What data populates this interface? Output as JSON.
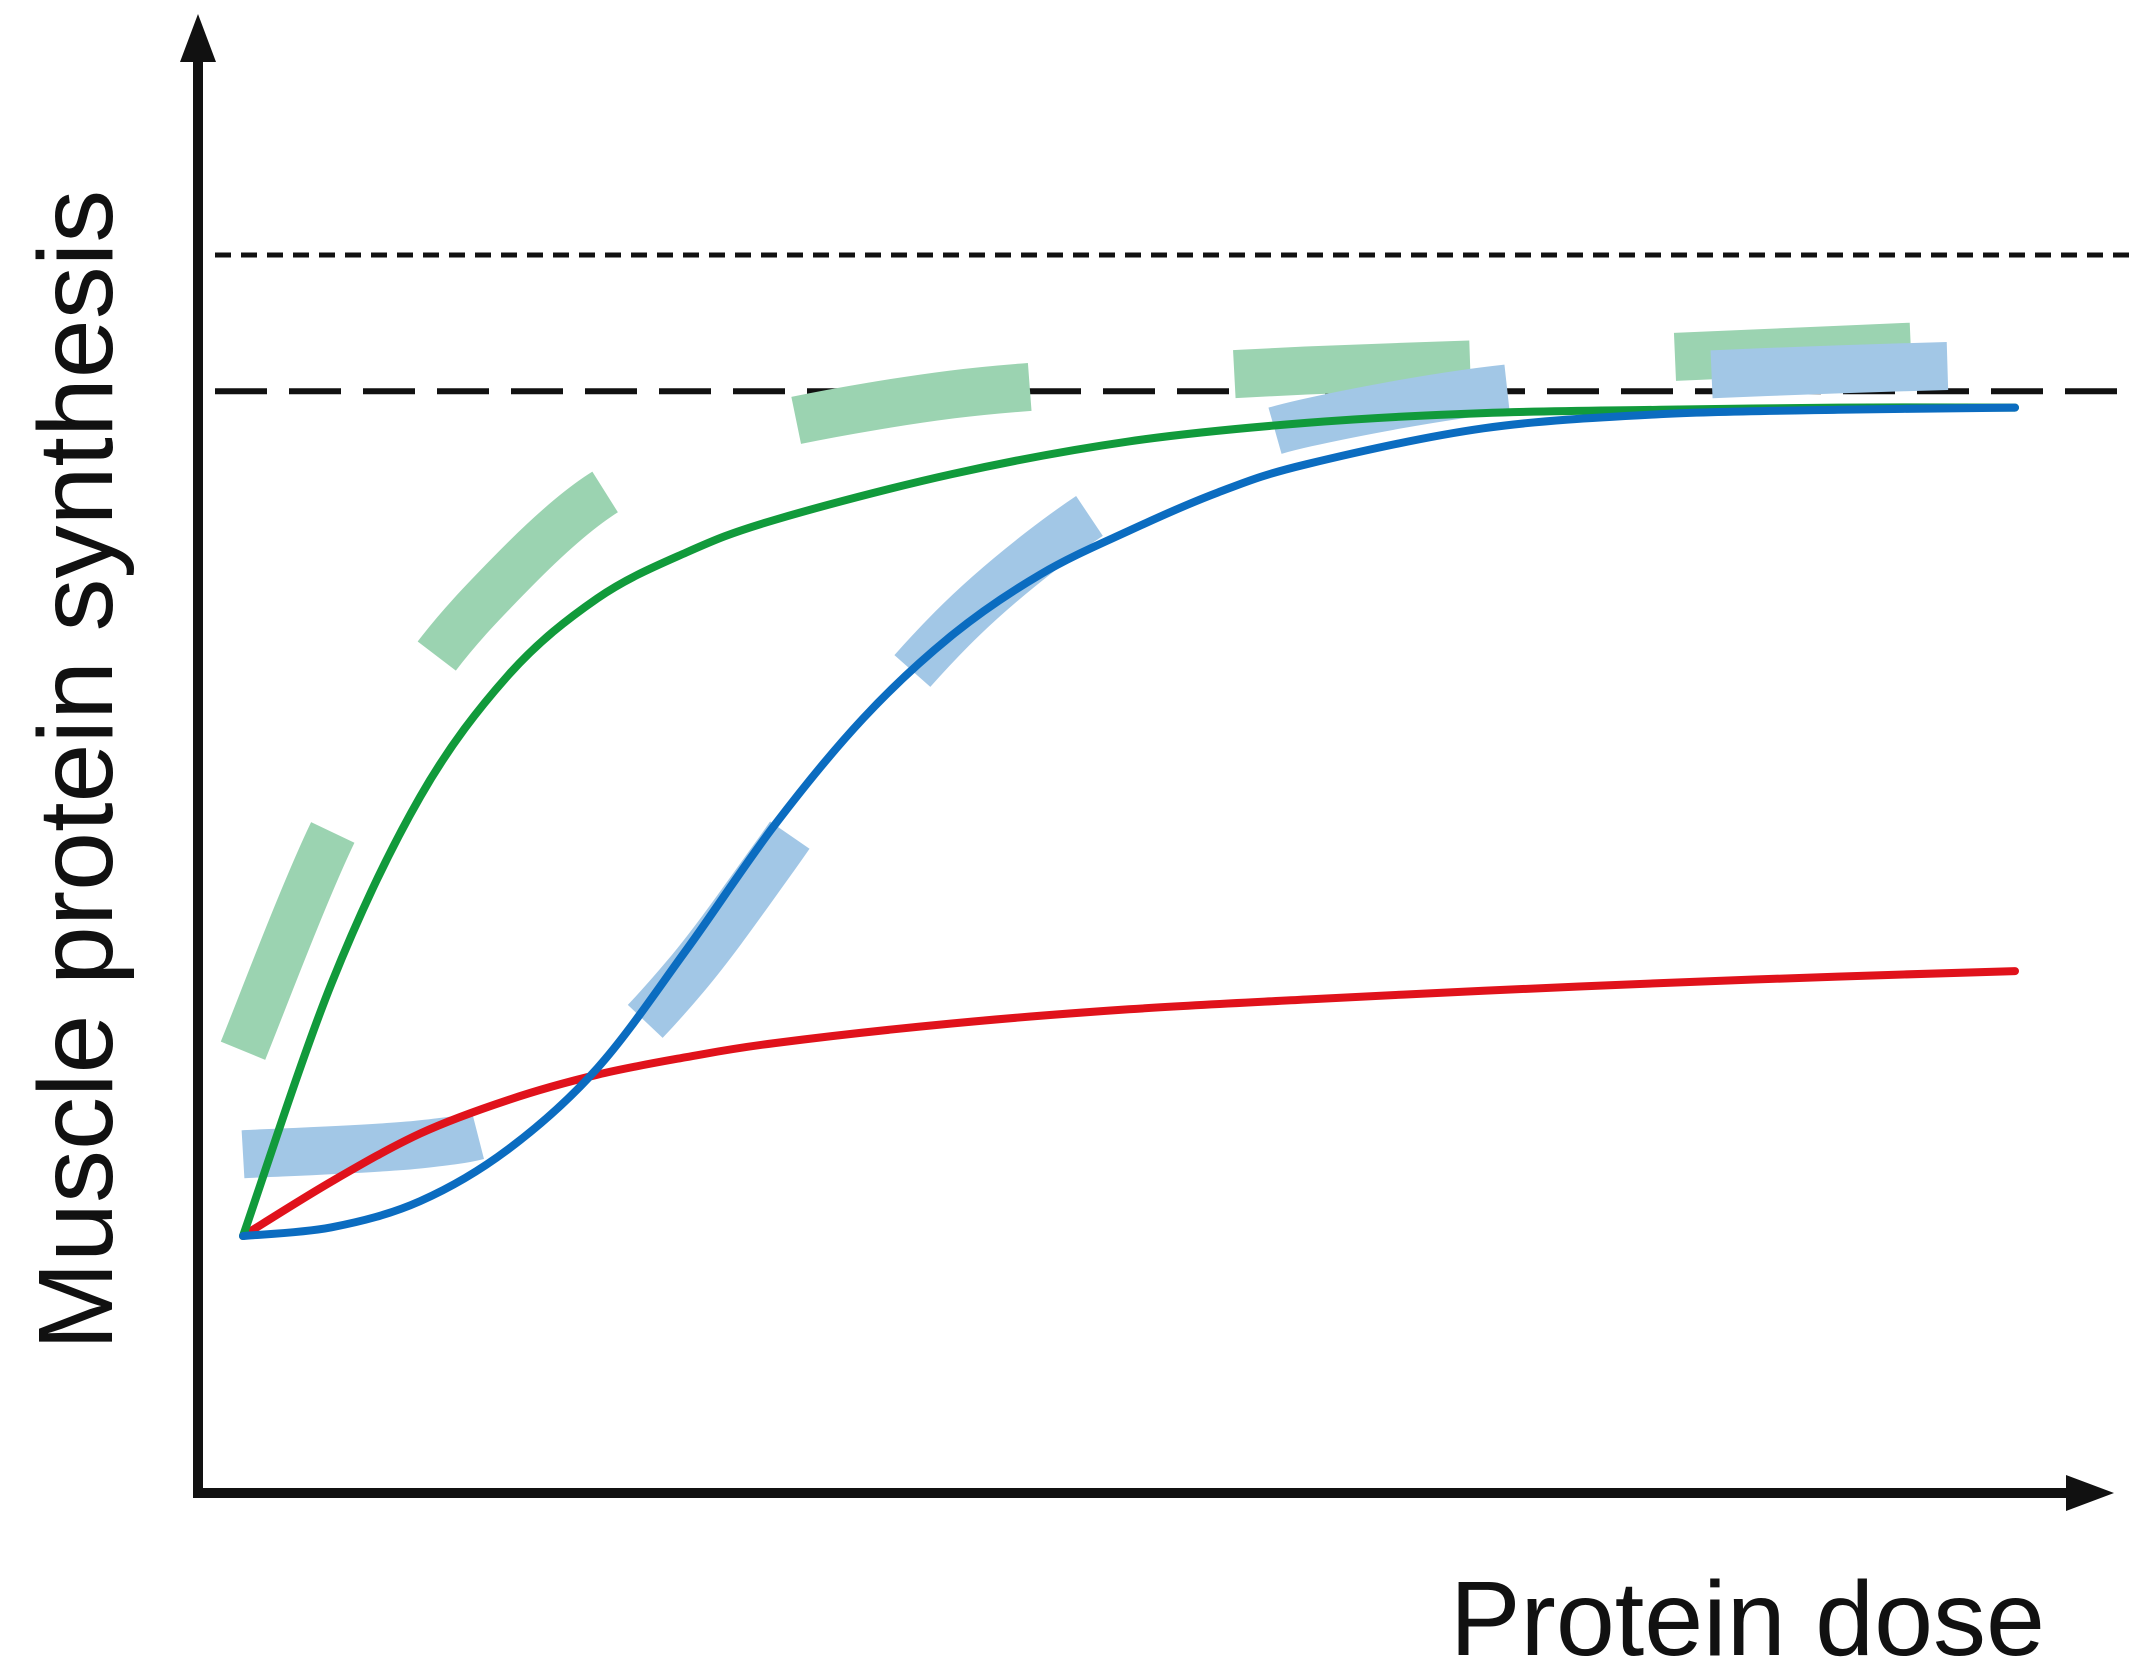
{
  "chart_data": {
    "type": "line",
    "title": "",
    "xlabel": "Protein dose",
    "ylabel": "Muscle protein synthesis",
    "xlim": [
      0,
      100
    ],
    "ylim": [
      0,
      100
    ],
    "grid": false,
    "legend": "none",
    "series": [
      {
        "style": "solid",
        "color": "#e0121b",
        "x": [
          0,
          5,
          10,
          15,
          20,
          25,
          30,
          40,
          50,
          60,
          70,
          80,
          90,
          100
        ],
        "y": [
          10,
          15,
          19.4,
          22.5,
          24.8,
          26.4,
          27.7,
          29.5,
          30.8,
          31.7,
          32.5,
          33.2,
          33.8,
          34.3
        ]
      },
      {
        "style": "solid",
        "color": "#119a3b",
        "x": [
          0,
          5,
          10,
          15,
          20,
          25,
          30,
          40,
          50,
          60,
          70,
          80,
          90,
          100
        ],
        "y": [
          10,
          33.2,
          50.3,
          61.5,
          68.5,
          72.7,
          75.7,
          79.9,
          82.9,
          84.6,
          85.5,
          85.8,
          86.0,
          86.0
        ]
      },
      {
        "style": "solid",
        "color": "#0b6cc0",
        "x": [
          0,
          5,
          10,
          15,
          20,
          25,
          30,
          35,
          40,
          45,
          50,
          55,
          60,
          70,
          80,
          90,
          100
        ],
        "y": [
          10,
          10.8,
          13.2,
          18,
          25.4,
          36.2,
          47.7,
          57.5,
          65.1,
          70.7,
          74.7,
          78.2,
          80.8,
          84.1,
          85.4,
          85.8,
          86.0
        ]
      },
      {
        "style": "dashed",
        "color": "#9bd3b1",
        "x": [
          0,
          5,
          10,
          15,
          20,
          25,
          30,
          40,
          50,
          60,
          70,
          80,
          90,
          100
        ],
        "y": [
          27,
          46.8,
          61.1,
          70.6,
          77.8,
          81.7,
          84.4,
          87.2,
          88.5,
          89.4,
          90.0,
          90.6,
          91.3,
          92.0
        ]
      },
      {
        "style": "dashed",
        "color": "#a2c7e6",
        "x": [
          0,
          10,
          15,
          20,
          25,
          30,
          35,
          40,
          45,
          50,
          55,
          60,
          70,
          80,
          90,
          100
        ],
        "y": [
          17.5,
          18.4,
          20.2,
          25.5,
          33.9,
          44.8,
          56.4,
          65.7,
          72.8,
          78.3,
          82.0,
          84.6,
          87.5,
          88.8,
          89.5,
          90.0
        ]
      }
    ],
    "reference_lines": [
      {
        "style": "dotted",
        "color": "#111111",
        "y": 100
      },
      {
        "style": "dashed",
        "color": "#111111",
        "y": 87.5
      }
    ]
  }
}
